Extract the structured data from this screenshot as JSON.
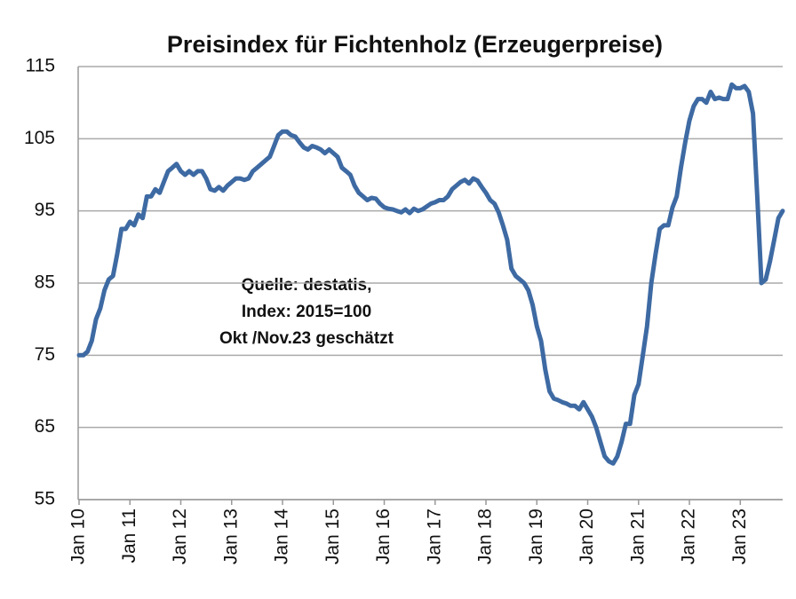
{
  "chart_data": {
    "type": "line",
    "title": "Preisindex für Fichtenholz  (Erzeugerpreise)",
    "annotation": [
      "Quelle: destatis,",
      "Index: 2015=100",
      "Okt /Nov.23 geschätzt"
    ],
    "categories": [
      "Jan 10",
      null,
      null,
      null,
      null,
      null,
      null,
      null,
      null,
      null,
      null,
      null,
      "Jan 11",
      null,
      null,
      null,
      null,
      null,
      null,
      null,
      null,
      null,
      null,
      null,
      "Jan 12",
      null,
      null,
      null,
      null,
      null,
      null,
      null,
      null,
      null,
      null,
      null,
      "Jan 13",
      null,
      null,
      null,
      null,
      null,
      null,
      null,
      null,
      null,
      null,
      null,
      "Jan 14",
      null,
      null,
      null,
      null,
      null,
      null,
      null,
      null,
      null,
      null,
      null,
      "Jan 15",
      null,
      null,
      null,
      null,
      null,
      null,
      null,
      null,
      null,
      null,
      null,
      "Jan 16",
      null,
      null,
      null,
      null,
      null,
      null,
      null,
      null,
      null,
      null,
      null,
      "Jan 17",
      null,
      null,
      null,
      null,
      null,
      null,
      null,
      null,
      null,
      null,
      null,
      "Jan 18",
      null,
      null,
      null,
      null,
      null,
      null,
      null,
      null,
      null,
      null,
      null,
      "Jan 19",
      null,
      null,
      null,
      null,
      null,
      null,
      null,
      null,
      null,
      null,
      null,
      "Jan 20",
      null,
      null,
      null,
      null,
      null,
      null,
      null,
      null,
      null,
      null,
      null,
      "Jan 21",
      null,
      null,
      null,
      null,
      null,
      null,
      null,
      null,
      null,
      null,
      null,
      "Jan 22",
      null,
      null,
      null,
      null,
      null,
      null,
      null,
      null,
      null,
      null,
      null,
      "Jan 23",
      null,
      null,
      null,
      null,
      null,
      null,
      null,
      null,
      null,
      null
    ],
    "values": [
      75,
      75,
      75.5,
      77,
      80,
      81.5,
      84,
      85.5,
      86,
      89,
      92.5,
      92.5,
      93.5,
      93,
      94.5,
      94,
      97,
      97,
      98,
      97.5,
      99,
      100.5,
      101,
      101.5,
      100.5,
      100,
      100.5,
      100,
      100.5,
      100.5,
      99.5,
      98,
      97.8,
      98.3,
      97.8,
      98.5,
      99,
      99.5,
      99.5,
      99.3,
      99.5,
      100.5,
      101,
      101.5,
      102,
      102.5,
      104,
      105.5,
      106,
      106,
      105.5,
      105.3,
      104.5,
      103.8,
      103.5,
      104,
      103.8,
      103.5,
      103,
      103.5,
      103,
      102.5,
      101,
      100.5,
      100,
      98.5,
      97.5,
      97,
      96.5,
      96.8,
      96.7,
      96,
      95.5,
      95.3,
      95.2,
      95,
      94.8,
      95.2,
      94.7,
      95.3,
      95,
      95.2,
      95.6,
      96,
      96.2,
      96.5,
      96.5,
      97,
      98,
      98.5,
      99,
      99.3,
      98.8,
      99.5,
      99.2,
      98.3,
      97.5,
      96.5,
      96,
      94.8,
      93,
      91,
      87,
      86,
      85.5,
      85,
      84,
      82,
      79,
      77,
      73,
      70,
      69,
      68.8,
      68.5,
      68.3,
      68,
      68,
      67.5,
      68.5,
      67.5,
      66.5,
      65,
      63,
      61,
      60.3,
      60,
      61,
      63,
      65.5,
      65.5,
      69.5,
      71,
      75,
      79,
      85,
      89,
      92.5,
      93,
      93,
      95.5,
      97,
      101,
      104.5,
      107.5,
      109.5,
      110.5,
      110.5,
      110,
      111.5,
      110.5,
      110.7,
      110.5,
      110.5,
      112.5,
      112,
      112,
      112.3,
      111.5,
      108.5,
      97,
      85,
      85.5,
      88,
      91,
      94,
      95
    ],
    "color": "#3e6aa3",
    "ylim": [
      55,
      115
    ],
    "yticks": [
      55,
      65,
      75,
      85,
      95,
      105,
      115
    ],
    "grid": true
  }
}
